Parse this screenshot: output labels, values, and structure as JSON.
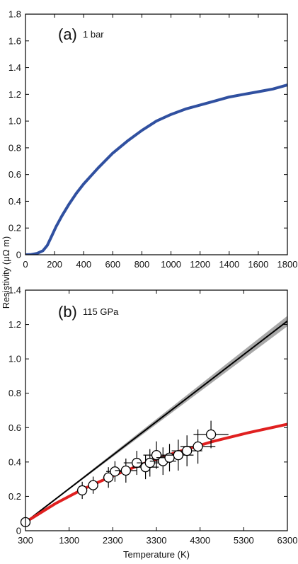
{
  "ylabel": "Resistivity (μΩ m)",
  "chart_data": [
    {
      "type": "line",
      "panel": "(a)",
      "condition": "1 bar",
      "xlabel": "",
      "xlim": [
        0,
        1800
      ],
      "ylim": [
        0,
        1.8
      ],
      "xticks": [
        0,
        200,
        400,
        600,
        800,
        1000,
        1200,
        1400,
        1600,
        1800
      ],
      "yticks": [
        0,
        0.2,
        0.4,
        0.6,
        0.8,
        1.0,
        1.2,
        1.4,
        1.6,
        1.8
      ],
      "ytick_labels": [
        "0",
        "0.2",
        "0.4",
        "0.6",
        "0.8",
        "1.0",
        "1.2",
        "1.4",
        "1.6",
        "1.8"
      ],
      "series": [
        {
          "color": "#3050a0",
          "x": [
            0,
            40,
            80,
            120,
            150,
            180,
            210,
            250,
            300,
            350,
            400,
            500,
            600,
            700,
            800,
            900,
            1000,
            1100,
            1200,
            1300,
            1400,
            1500,
            1600,
            1700,
            1800
          ],
          "y": [
            0,
            0.002,
            0.01,
            0.03,
            0.07,
            0.14,
            0.21,
            0.29,
            0.38,
            0.46,
            0.53,
            0.65,
            0.76,
            0.85,
            0.93,
            1.0,
            1.05,
            1.09,
            1.12,
            1.15,
            1.18,
            1.2,
            1.22,
            1.24,
            1.27
          ]
        }
      ]
    },
    {
      "type": "line",
      "panel": "(b)",
      "condition": "115 GPa",
      "xlabel": "Temperature (K)",
      "xlim": [
        300,
        6300
      ],
      "ylim": [
        0,
        1.4
      ],
      "xticks": [
        300,
        1300,
        2300,
        3300,
        4300,
        5300,
        6300
      ],
      "yticks": [
        0,
        0.2,
        0.4,
        0.6,
        0.8,
        1.0,
        1.2,
        1.4
      ],
      "ytick_labels": [
        "0",
        "0.2",
        "0.4",
        "0.6",
        "0.8",
        "1.0",
        "1.2",
        "1.4"
      ],
      "band": {
        "color": "#a8a8a8",
        "x": [
          300,
          6300
        ],
        "lower": [
          0.05,
          1.19
        ],
        "upper": [
          0.05,
          1.25
        ]
      },
      "series": [
        {
          "color": "#000000",
          "x": [
            300,
            6300
          ],
          "y": [
            0.05,
            1.22
          ]
        },
        {
          "color": "#e02020",
          "x": [
            300,
            1000,
            1600,
            2300,
            3000,
            3800,
            4600,
            5400,
            6300
          ],
          "y": [
            0.05,
            0.16,
            0.24,
            0.32,
            0.39,
            0.46,
            0.52,
            0.57,
            0.62
          ]
        }
      ],
      "points": [
        {
          "x": 300,
          "y": 0.05,
          "xerr": 0,
          "yerr": 0
        },
        {
          "x": 1600,
          "y": 0.235,
          "xerr": 0,
          "yerr": 0.05
        },
        {
          "x": 1850,
          "y": 0.265,
          "xerr": 0,
          "yerr": 0.05
        },
        {
          "x": 2200,
          "y": 0.31,
          "xerr": 120,
          "yerr": 0.06
        },
        {
          "x": 2350,
          "y": 0.345,
          "xerr": 200,
          "yerr": 0.06
        },
        {
          "x": 2600,
          "y": 0.35,
          "xerr": 250,
          "yerr": 0.07
        },
        {
          "x": 2850,
          "y": 0.395,
          "xerr": 300,
          "yerr": 0.07
        },
        {
          "x": 3050,
          "y": 0.37,
          "xerr": 300,
          "yerr": 0.07
        },
        {
          "x": 3150,
          "y": 0.395,
          "xerr": 300,
          "yerr": 0.08
        },
        {
          "x": 3300,
          "y": 0.44,
          "xerr": 300,
          "yerr": 0.08
        },
        {
          "x": 3450,
          "y": 0.405,
          "xerr": 300,
          "yerr": 0.08
        },
        {
          "x": 3600,
          "y": 0.425,
          "xerr": 300,
          "yerr": 0.08
        },
        {
          "x": 3800,
          "y": 0.44,
          "xerr": 350,
          "yerr": 0.09
        },
        {
          "x": 4000,
          "y": 0.465,
          "xerr": 350,
          "yerr": 0.09
        },
        {
          "x": 4250,
          "y": 0.49,
          "xerr": 400,
          "yerr": 0.1
        },
        {
          "x": 4550,
          "y": 0.56,
          "xerr": 400,
          "yerr": 0.08
        }
      ]
    }
  ]
}
